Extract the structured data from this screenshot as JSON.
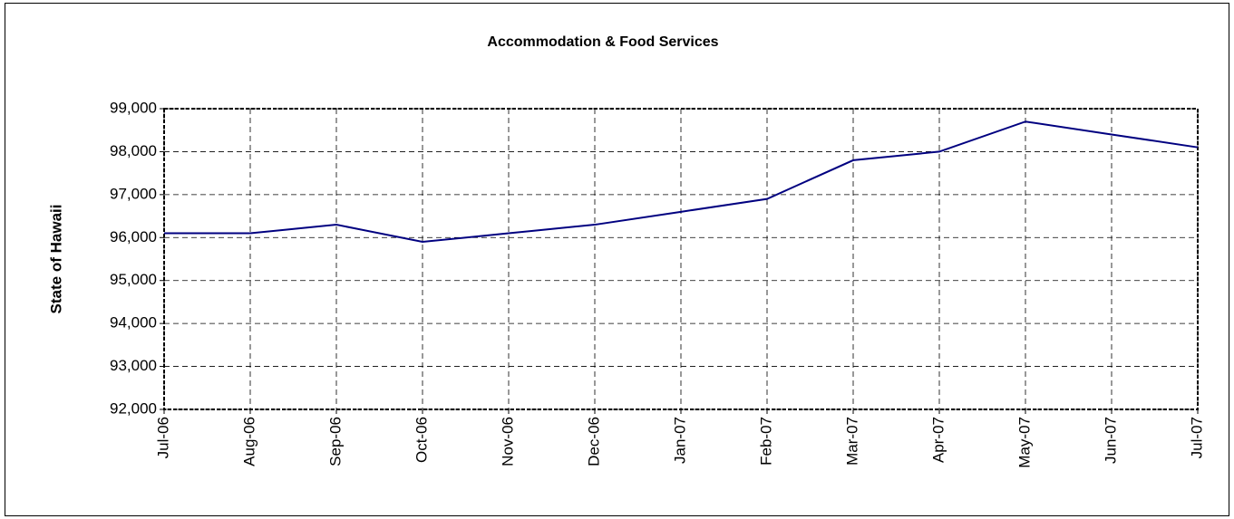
{
  "chart_data": {
    "type": "line",
    "title": "Accommodation & Food Services",
    "y_label": "State of Hawaii",
    "categories": [
      "Jul-06",
      "Aug-06",
      "Sep-06",
      "Oct-06",
      "Nov-06",
      "Dec-06",
      "Jan-07",
      "Feb-07",
      "Mar-07",
      "Apr-07",
      "May-07",
      "Jun-07",
      "Jul-07"
    ],
    "series": [
      {
        "name": "State of Hawaii",
        "color": "#000080",
        "values": [
          96100,
          96100,
          96300,
          95900,
          96100,
          96300,
          96600,
          96900,
          97800,
          98000,
          98700,
          98400,
          98100
        ]
      }
    ],
    "ylim": [
      92000,
      99000
    ],
    "yticks": [
      {
        "value": 92000,
        "label": "92,000"
      },
      {
        "value": 93000,
        "label": "93,000"
      },
      {
        "value": 94000,
        "label": "94,000"
      },
      {
        "value": 95000,
        "label": "95,000"
      },
      {
        "value": 96000,
        "label": "96,000"
      },
      {
        "value": 97000,
        "label": "97,000"
      },
      {
        "value": 98000,
        "label": "98,000"
      },
      {
        "value": 99000,
        "label": "99,000"
      }
    ],
    "grid": true
  }
}
